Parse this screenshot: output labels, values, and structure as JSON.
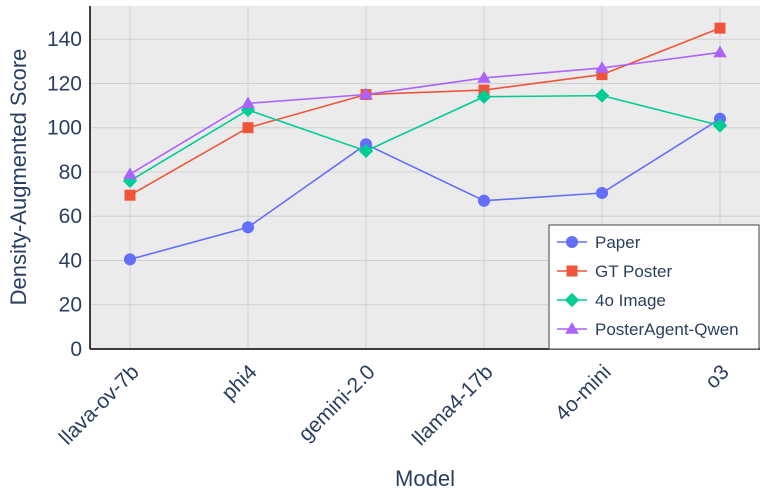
{
  "chart_data": {
    "type": "line",
    "categories": [
      "llava-ov-7b",
      "phi4",
      "gemini-2.0",
      "llama4-17b",
      "4o-mini",
      "o3"
    ],
    "series": [
      {
        "name": "Paper",
        "values": [
          40.5,
          55,
          92.5,
          67,
          70.5,
          104
        ],
        "color": "#636efa",
        "marker": "circle"
      },
      {
        "name": "GT Poster",
        "values": [
          69.5,
          100,
          115,
          117,
          124,
          145
        ],
        "color": "#ef553b",
        "marker": "square"
      },
      {
        "name": "4o Image",
        "values": [
          76,
          108,
          89.5,
          114,
          114.5,
          101
        ],
        "color": "#00cc96",
        "marker": "diamond"
      },
      {
        "name": "PosterAgent-Qwen",
        "values": [
          79,
          111,
          115,
          122.5,
          127,
          134
        ],
        "color": "#ab63fa",
        "marker": "triangle-up"
      }
    ],
    "title": "",
    "xlabel": "Model",
    "ylabel": "Density-Augmented Score",
    "ylim": [
      0,
      155
    ],
    "yticks": [
      0,
      20,
      40,
      60,
      80,
      100,
      120,
      140
    ],
    "grid": true,
    "legend_position": "bottom-right",
    "plot_background": "#ebebeb"
  }
}
